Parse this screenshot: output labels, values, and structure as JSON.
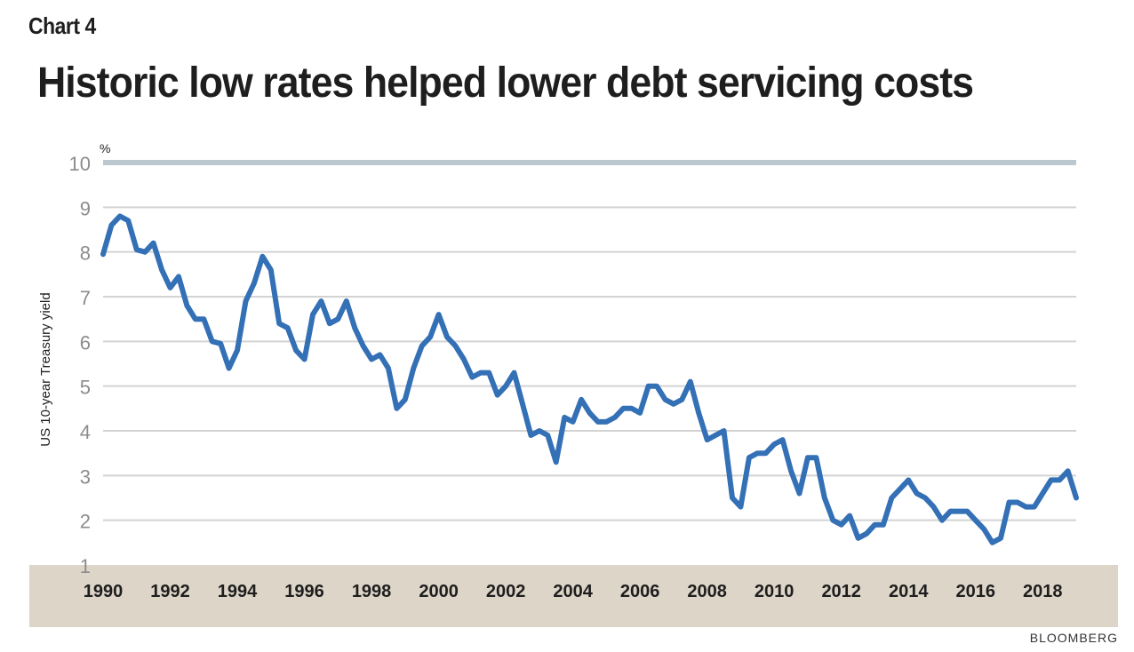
{
  "label": "Chart 4",
  "title": "Historic low rates helped lower debt servicing costs",
  "source": "BLOOMBERG",
  "colors": {
    "line": "#3470b6",
    "grid": "#d3d3d3",
    "top_grid": "#bcc8cf",
    "band": "#ddd5c8",
    "tick_text": "#8c8c8c"
  },
  "chart_data": {
    "type": "line",
    "title": "Historic low rates helped lower debt servicing costs",
    "xlabel": "",
    "ylabel": "US 10-year Treasury yield",
    "yunit": "%",
    "ylim": [
      1,
      10
    ],
    "xlim": [
      1990,
      2019
    ],
    "yticks": [
      1,
      2,
      3,
      4,
      5,
      6,
      7,
      8,
      9,
      10
    ],
    "xticks": [
      "1990",
      "1992",
      "1994",
      "1996",
      "1998",
      "2000",
      "2002",
      "2004",
      "2006",
      "2008",
      "2010",
      "2012",
      "2014",
      "2016",
      "2018"
    ],
    "grid": true,
    "series": [
      {
        "name": "",
        "x": [
          1990.0,
          1990.25,
          1990.5,
          1990.75,
          1991.0,
          1991.25,
          1991.5,
          1991.75,
          1992.0,
          1992.25,
          1992.5,
          1992.75,
          1993.0,
          1993.25,
          1993.5,
          1993.75,
          1994.0,
          1994.25,
          1994.5,
          1994.75,
          1995.0,
          1995.25,
          1995.5,
          1995.75,
          1996.0,
          1996.25,
          1996.5,
          1996.75,
          1997.0,
          1997.25,
          1997.5,
          1997.75,
          1998.0,
          1998.25,
          1998.5,
          1998.75,
          1999.0,
          1999.25,
          1999.5,
          1999.75,
          2000.0,
          2000.25,
          2000.5,
          2000.75,
          2001.0,
          2001.25,
          2001.5,
          2001.75,
          2002.0,
          2002.25,
          2002.5,
          2002.75,
          2003.0,
          2003.25,
          2003.5,
          2003.75,
          2004.0,
          2004.25,
          2004.5,
          2004.75,
          2005.0,
          2005.25,
          2005.5,
          2005.75,
          2006.0,
          2006.25,
          2006.5,
          2006.75,
          2007.0,
          2007.25,
          2007.5,
          2007.75,
          2008.0,
          2008.25,
          2008.5,
          2008.75,
          2009.0,
          2009.25,
          2009.5,
          2009.75,
          2010.0,
          2010.25,
          2010.5,
          2010.75,
          2011.0,
          2011.25,
          2011.5,
          2011.75,
          2012.0,
          2012.25,
          2012.5,
          2012.75,
          2013.0,
          2013.25,
          2013.5,
          2013.75,
          2014.0,
          2014.25,
          2014.5,
          2014.75,
          2015.0,
          2015.25,
          2015.5,
          2015.75,
          2016.0,
          2016.25,
          2016.5,
          2016.75,
          2017.0,
          2017.25,
          2017.5,
          2017.75,
          2018.0,
          2018.25,
          2018.5,
          2018.75,
          2019.0
        ],
        "values": [
          7.95,
          8.6,
          8.8,
          8.7,
          8.05,
          8.0,
          8.2,
          7.6,
          7.2,
          7.45,
          6.8,
          6.5,
          6.5,
          6.0,
          5.95,
          5.4,
          5.8,
          6.9,
          7.3,
          7.9,
          7.6,
          6.4,
          6.3,
          5.8,
          5.6,
          6.6,
          6.9,
          6.4,
          6.5,
          6.9,
          6.3,
          5.9,
          5.6,
          5.7,
          5.4,
          4.5,
          4.7,
          5.4,
          5.9,
          6.1,
          6.6,
          6.1,
          5.9,
          5.6,
          5.2,
          5.3,
          5.3,
          4.8,
          5.0,
          5.3,
          4.6,
          3.9,
          4.0,
          3.9,
          3.3,
          4.3,
          4.2,
          4.7,
          4.4,
          4.2,
          4.2,
          4.3,
          4.5,
          4.5,
          4.4,
          5.0,
          5.0,
          4.7,
          4.6,
          4.7,
          5.1,
          4.4,
          3.8,
          3.9,
          4.0,
          2.5,
          2.3,
          3.4,
          3.5,
          3.5,
          3.7,
          3.8,
          3.1,
          2.6,
          3.4,
          3.4,
          2.5,
          2.0,
          1.9,
          2.1,
          1.6,
          1.7,
          1.9,
          1.9,
          2.5,
          2.7,
          2.9,
          2.6,
          2.5,
          2.3,
          2.0,
          2.2,
          2.2,
          2.2,
          2.0,
          1.8,
          1.5,
          1.6,
          2.4,
          2.4,
          2.3,
          2.3,
          2.6,
          2.9,
          2.9,
          3.1,
          2.5
        ]
      }
    ]
  }
}
